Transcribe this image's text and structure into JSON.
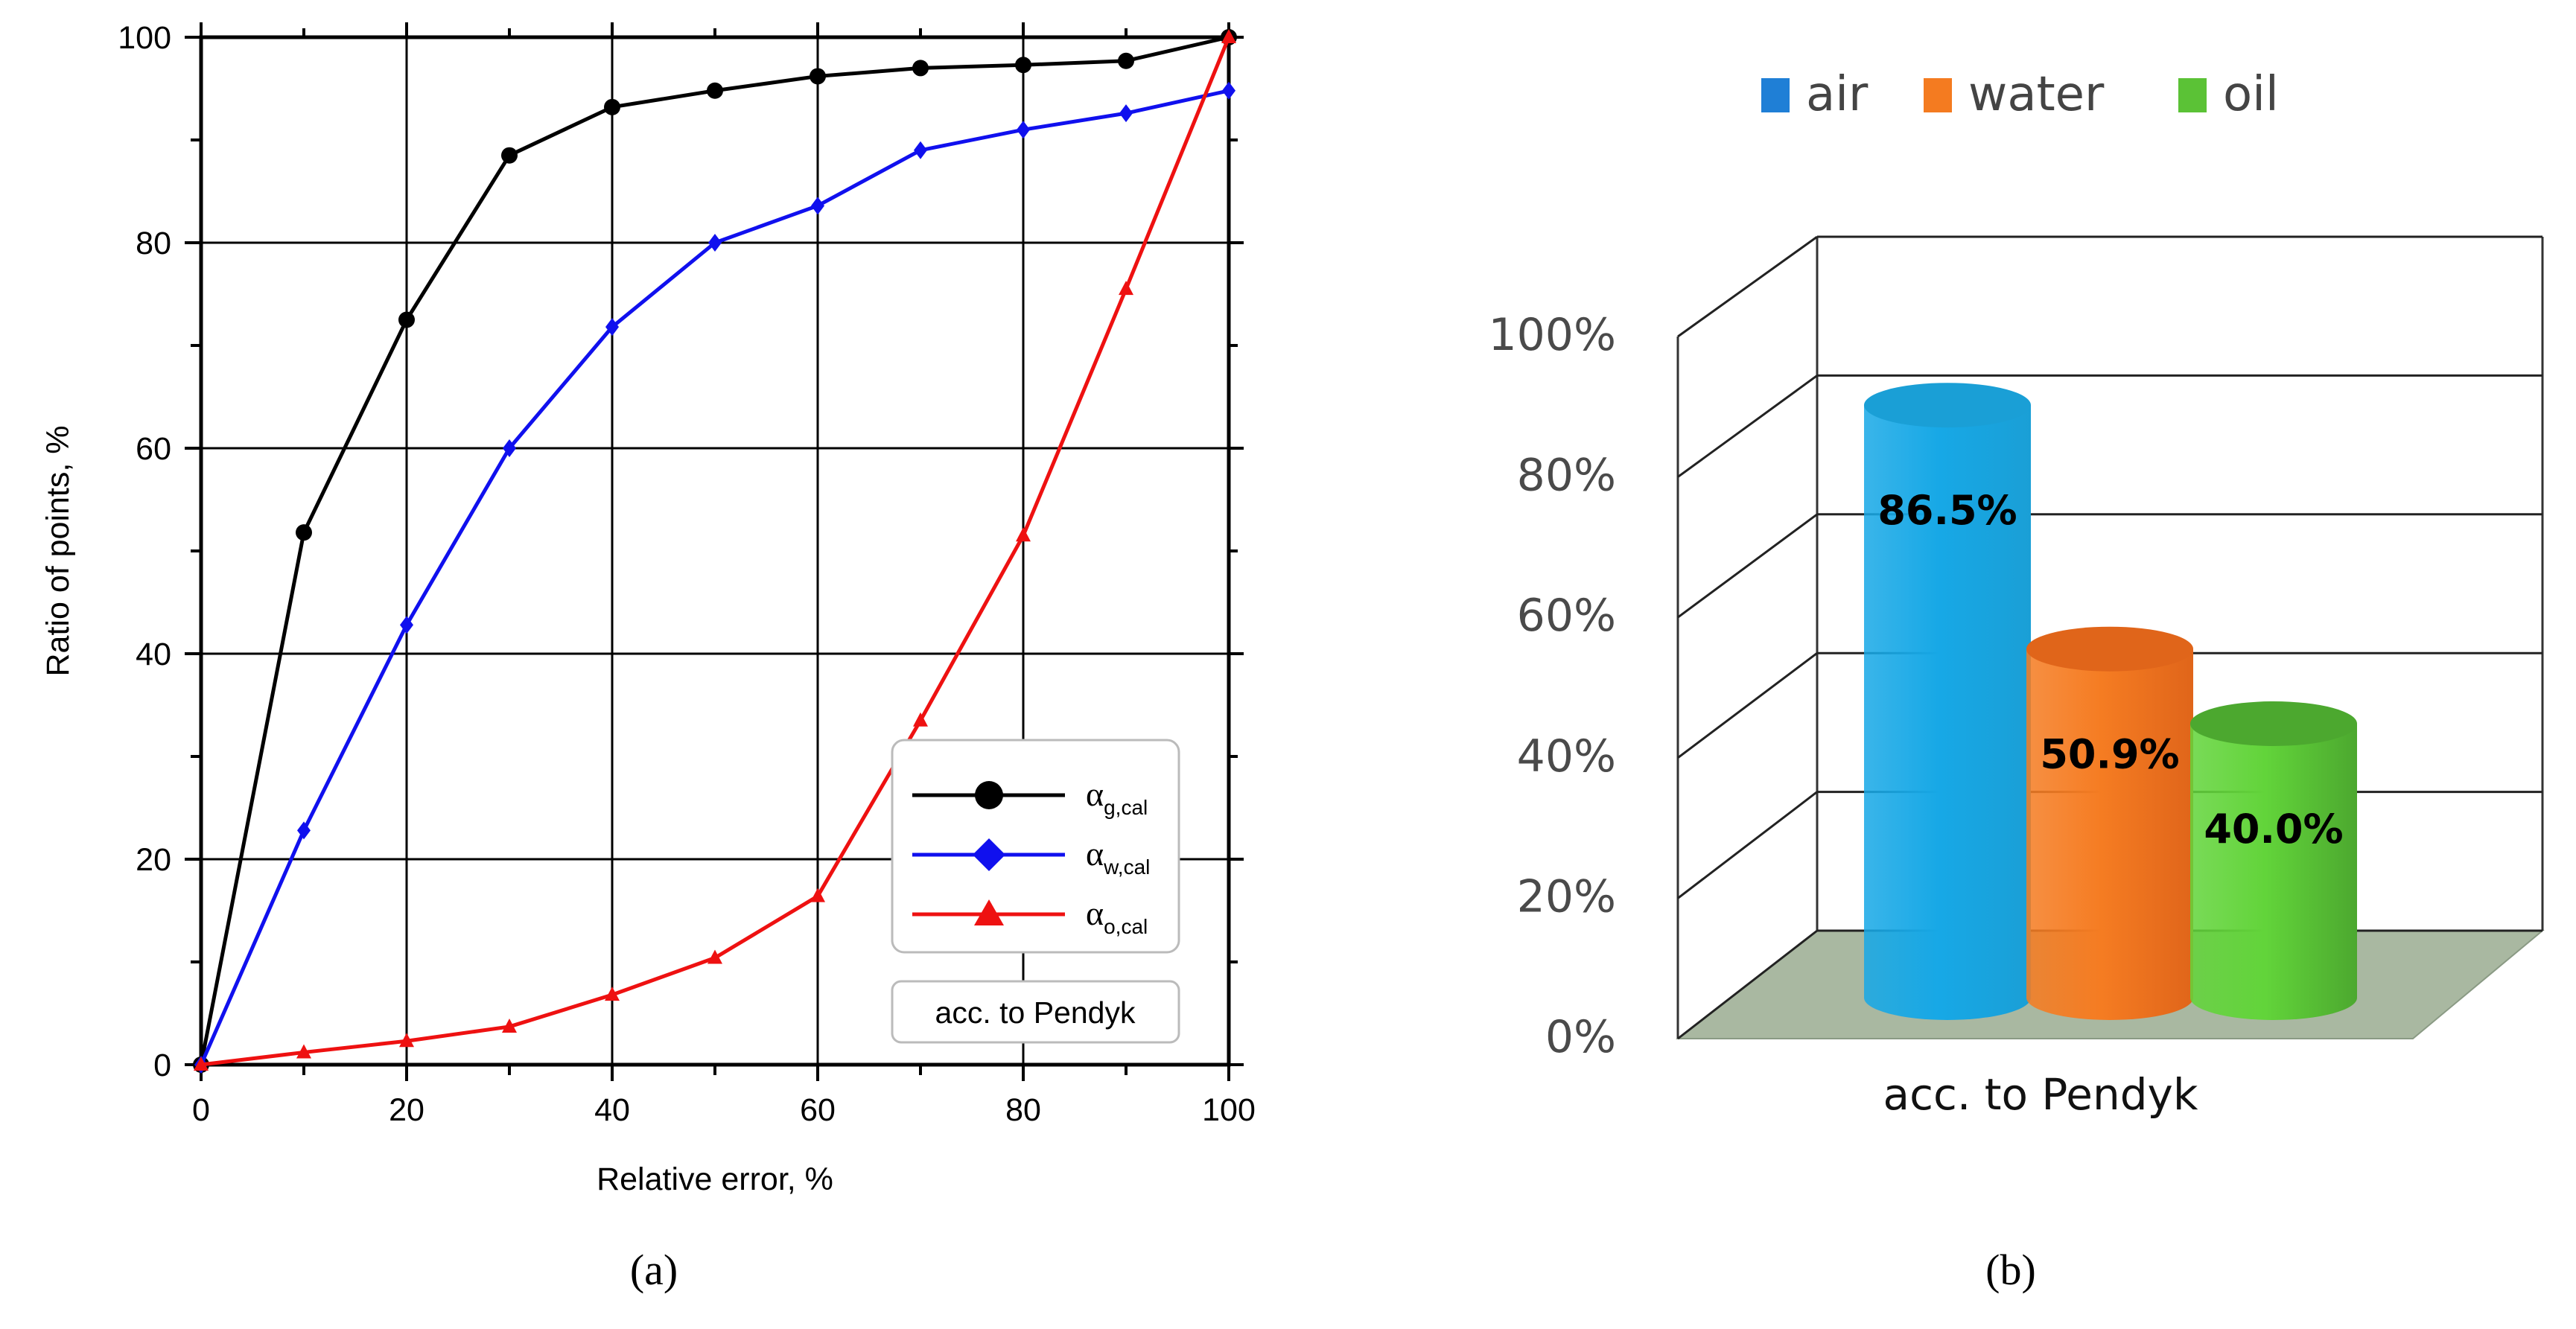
{
  "chart_data": [
    {
      "type": "line",
      "panel_label": "(a)",
      "xlabel": "Relative error, %",
      "ylabel": "Ratio of points, %",
      "xlim": [
        0,
        100
      ],
      "ylim": [
        0,
        100
      ],
      "xticks": [
        0,
        20,
        40,
        60,
        80,
        100
      ],
      "yticks": [
        0,
        20,
        40,
        60,
        80,
        100
      ],
      "x_tick_labels": [
        "0",
        "20",
        "40",
        "60",
        "80",
        "100"
      ],
      "y_tick_labels": [
        "0",
        "20",
        "40",
        "60",
        "80",
        "100"
      ],
      "grid": true,
      "legend_position": "lower-right",
      "annotation": "acc. to Pendyk",
      "x": [
        0,
        10,
        20,
        30,
        40,
        50,
        60,
        70,
        80,
        90,
        100
      ],
      "series": [
        {
          "name": "α_g,cal",
          "symbol": "α",
          "subscript": "g,cal",
          "marker": "circle",
          "color": "#000000",
          "values": [
            0,
            51.8,
            72.5,
            88.5,
            93.2,
            94.8,
            96.2,
            97.0,
            97.3,
            97.7,
            100
          ]
        },
        {
          "name": "α_w,cal",
          "symbol": "α",
          "subscript": "w,cal",
          "marker": "diamond",
          "color": "#1010ee",
          "values": [
            0,
            22.8,
            42.8,
            60.0,
            71.8,
            80.0,
            83.6,
            89.0,
            91.0,
            92.6,
            94.8
          ]
        },
        {
          "name": "α_o,cal",
          "symbol": "α",
          "subscript": "o,cal",
          "marker": "triangle",
          "color": "#ee1111",
          "values": [
            0,
            1.2,
            2.3,
            3.7,
            6.8,
            10.4,
            16.4,
            33.5,
            51.5,
            75.5,
            100
          ]
        }
      ]
    },
    {
      "type": "bar",
      "style": "3d-cylinder",
      "panel_label": "(b)",
      "categories": [
        "acc. to Pendyk"
      ],
      "ylim": [
        0,
        100
      ],
      "yticks": [
        0,
        20,
        40,
        60,
        80,
        100
      ],
      "y_tick_labels": [
        "0%",
        "20%",
        "40%",
        "60%",
        "80%",
        "100%"
      ],
      "legend_position": "top",
      "series": [
        {
          "name": "air",
          "values": [
            86.5
          ],
          "label": "86.5%",
          "color": "#17a8e6",
          "top_color": "#1a9fd6",
          "legend_color": "#1f7fd6"
        },
        {
          "name": "water",
          "values": [
            50.9
          ],
          "label": "50.9%",
          "color": "#f57c22",
          "top_color": "#e0651a",
          "legend_color": "#f47b20"
        },
        {
          "name": "oil",
          "values": [
            40.0
          ],
          "label": "40.0%",
          "color": "#62d43a",
          "top_color": "#4ca82f",
          "legend_color": "#5bc236"
        }
      ]
    }
  ]
}
